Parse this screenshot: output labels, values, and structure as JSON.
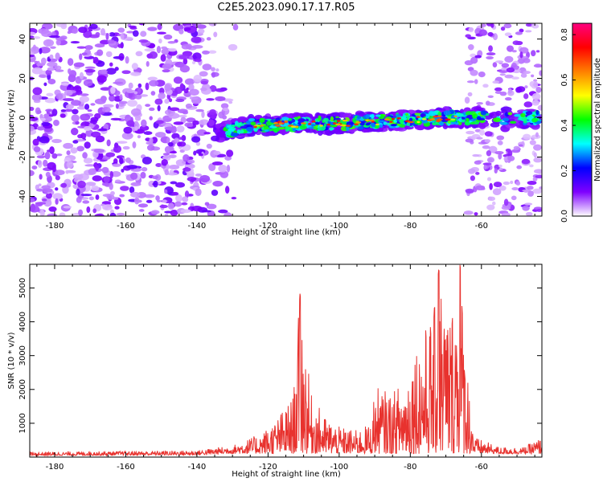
{
  "title": "C2E5.2023.090.17.17.R05",
  "chart_data": [
    {
      "type": "heatmap",
      "xlabel": "Height of straight line (km)",
      "ylabel": "Frequency (Hz)",
      "xlim": [
        -187,
        -43
      ],
      "ylim": [
        -50,
        48
      ],
      "x_ticks": [
        -180,
        -160,
        -140,
        -120,
        -100,
        -80,
        -60
      ],
      "y_ticks": [
        -40,
        -20,
        0,
        20,
        40
      ],
      "x_tick_labels": [
        "-180",
        "-160",
        "-140",
        "-120",
        "-100",
        "-80",
        "-60"
      ],
      "y_tick_labels": [
        "-40",
        "-20",
        "0",
        "20",
        "40"
      ],
      "signal_band": {
        "description_points": [
          {
            "x": -135,
            "y": -8
          },
          {
            "x": -125,
            "y": -4
          },
          {
            "x": -110,
            "y": -3
          },
          {
            "x": -100,
            "y": -3
          },
          {
            "x": -90,
            "y": -2
          },
          {
            "x": -80,
            "y": -1
          },
          {
            "x": -70,
            "y": 0
          },
          {
            "x": -60,
            "y": 0
          },
          {
            "x": -50,
            "y": 0
          },
          {
            "x": -45,
            "y": 0
          }
        ]
      },
      "colorbar": {
        "label": "Normalized spectral amplitude",
        "range": [
          0,
          0.85
        ],
        "ticks": [
          0.0,
          0.2,
          0.4,
          0.6,
          0.8
        ],
        "tick_labels": [
          "0.0",
          "0.2",
          "0.4",
          "0.6",
          "0.8"
        ],
        "colors": [
          "#ffffff",
          "#7f00ff",
          "#0000ff",
          "#00ffff",
          "#00ff00",
          "#ffff00",
          "#ff7f00",
          "#ff0000",
          "#ff0080"
        ]
      }
    },
    {
      "type": "line",
      "xlabel": "Height of straight line (km)",
      "ylabel": "SNR (10 * v/v)",
      "xlim": [
        -187,
        -43
      ],
      "ylim": [
        0,
        5700
      ],
      "x_ticks": [
        -180,
        -160,
        -140,
        -120,
        -100,
        -80,
        -60
      ],
      "y_ticks": [
        1000,
        2000,
        3000,
        4000,
        5000
      ],
      "x_tick_labels": [
        "-180",
        "-160",
        "-140",
        "-120",
        "-100",
        "-80",
        "-60"
      ],
      "y_tick_labels": [
        "1000",
        "2000",
        "3000",
        "4000",
        "5000"
      ],
      "color": "#e8322e",
      "envelope": [
        {
          "x": -187,
          "y": 150
        },
        {
          "x": -140,
          "y": 200
        },
        {
          "x": -130,
          "y": 350
        },
        {
          "x": -122,
          "y": 700
        },
        {
          "x": -118,
          "y": 1100
        },
        {
          "x": -113,
          "y": 1800
        },
        {
          "x": -111,
          "y": 4850
        },
        {
          "x": -108,
          "y": 1900
        },
        {
          "x": -104,
          "y": 1200
        },
        {
          "x": -100,
          "y": 900
        },
        {
          "x": -95,
          "y": 800
        },
        {
          "x": -91,
          "y": 1000
        },
        {
          "x": -90,
          "y": 2100
        },
        {
          "x": -85,
          "y": 1900
        },
        {
          "x": -81,
          "y": 2500
        },
        {
          "x": -79,
          "y": 3400
        },
        {
          "x": -76,
          "y": 3800
        },
        {
          "x": -73,
          "y": 4500
        },
        {
          "x": -72,
          "y": 5550
        },
        {
          "x": -69,
          "y": 4300
        },
        {
          "x": -66,
          "y": 5700
        },
        {
          "x": -64,
          "y": 2800
        },
        {
          "x": -62,
          "y": 600
        },
        {
          "x": -55,
          "y": 300
        },
        {
          "x": -48,
          "y": 300
        },
        {
          "x": -43,
          "y": 600
        }
      ]
    }
  ]
}
